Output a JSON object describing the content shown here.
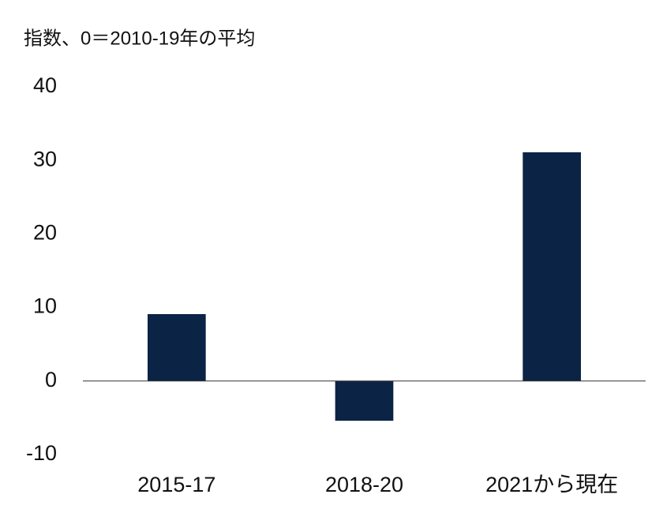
{
  "chart_data": {
    "type": "bar",
    "title": "指数、0＝2010-19年の平均",
    "categories": [
      "2015-17",
      "2018-20",
      "2021から現在"
    ],
    "values": [
      9.1,
      -5.4,
      31.1
    ],
    "color": "#0b2345",
    "ylim": [
      -10,
      40
    ],
    "yticks": [
      -10,
      0,
      10,
      20,
      30,
      40
    ],
    "grid": false
  }
}
